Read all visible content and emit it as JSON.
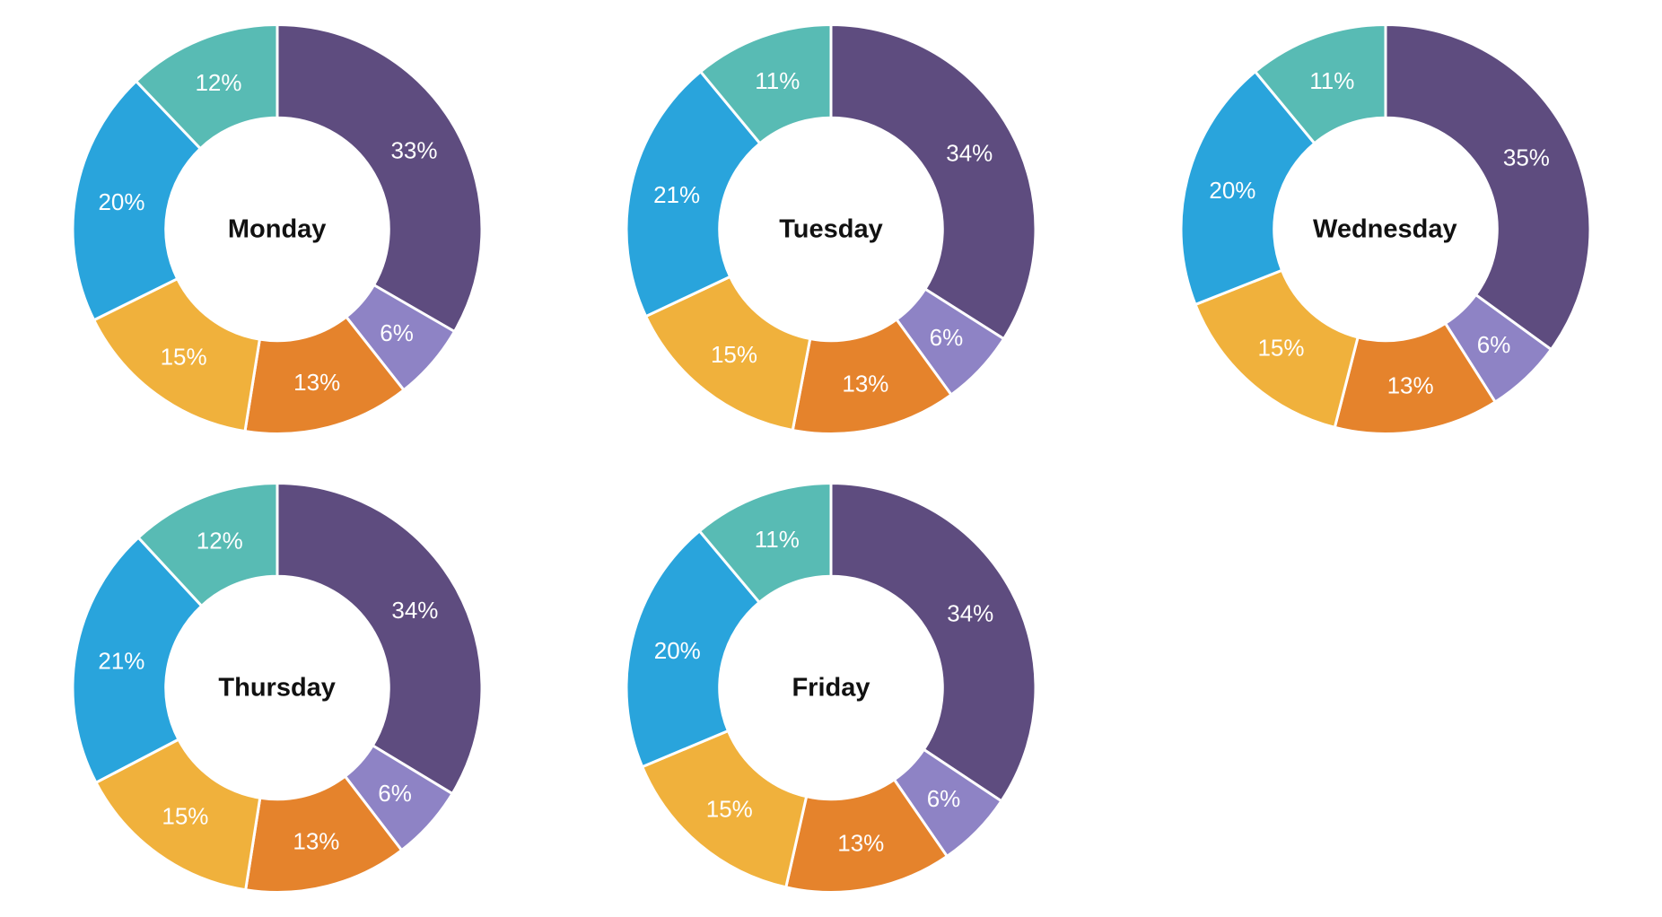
{
  "background": "#ffffff",
  "title_color": "#111111",
  "percent_label_color": "#ffffff",
  "layout": {
    "columns": 3,
    "rows": 2,
    "populated_cells": 5
  },
  "chart_data": {
    "type": "pie",
    "subtype": "donut",
    "start": "12-oclock",
    "direction": "clockwise",
    "inner_radius_ratio": 0.545,
    "outer_radius_px": 228,
    "slice_border_color": "#ffffff",
    "segment_colors": [
      "#5e4c7f",
      "#8e83c5",
      "#e5832c",
      "#f0b13c",
      "#29a4dc",
      "#58bbb4"
    ],
    "segment_color_names": [
      "dark-purple",
      "light-purple",
      "orange",
      "amber",
      "blue",
      "teal"
    ],
    "charts": [
      {
        "title": "Monday",
        "values": [
          33,
          6,
          13,
          15,
          20,
          12
        ],
        "labels": [
          "33%",
          "6%",
          "13%",
          "15%",
          "20%",
          "12%"
        ]
      },
      {
        "title": "Tuesday",
        "values": [
          34,
          6,
          13,
          15,
          21,
          11
        ],
        "labels": [
          "34%",
          "6%",
          "13%",
          "15%",
          "21%",
          "11%"
        ]
      },
      {
        "title": "Wednesday",
        "values": [
          35,
          6,
          13,
          15,
          20,
          11
        ],
        "labels": [
          "35%",
          "6%",
          "13%",
          "15%",
          "20%",
          "11%"
        ]
      },
      {
        "title": "Thursday",
        "values": [
          34,
          6,
          13,
          15,
          21,
          12
        ],
        "labels": [
          "34%",
          "6%",
          "13%",
          "15%",
          "21%",
          "12%"
        ]
      },
      {
        "title": "Friday",
        "values": [
          34,
          6,
          13,
          15,
          20,
          11
        ],
        "labels": [
          "34%",
          "6%",
          "13%",
          "15%",
          "20%",
          "11%"
        ]
      }
    ]
  }
}
